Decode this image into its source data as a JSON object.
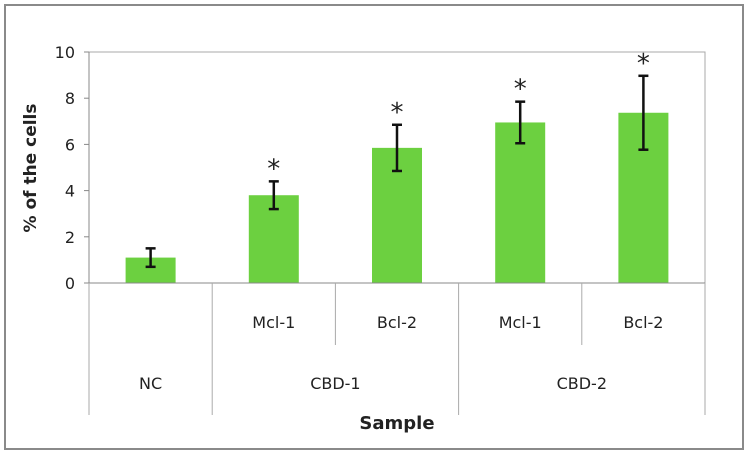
{
  "chart_data": {
    "type": "bar",
    "title": "",
    "xlabel": "Sample",
    "ylabel": "% of the cells",
    "ylim": [
      0,
      10
    ],
    "yticks": [
      "0",
      "2",
      "4",
      "6",
      "8",
      "10"
    ],
    "bars": [
      {
        "group": "NC",
        "label": "",
        "value": 1.1,
        "error": 0.4,
        "significant": false
      },
      {
        "group": "CBD-1",
        "label": "Mcl-1",
        "value": 3.8,
        "error": 0.6,
        "significant": true
      },
      {
        "group": "CBD-1",
        "label": "Bcl-2",
        "value": 5.85,
        "error": 1.0,
        "significant": true
      },
      {
        "group": "CBD-2",
        "label": "Mcl-1",
        "value": 6.95,
        "error": 0.9,
        "significant": true
      },
      {
        "group": "CBD-2",
        "label": "Bcl-2",
        "value": 7.37,
        "error": 1.6,
        "significant": true
      }
    ],
    "groups": [
      {
        "label": "NC",
        "span": 1
      },
      {
        "label": "CBD-1",
        "span": 2
      },
      {
        "label": "CBD-2",
        "span": 2
      }
    ],
    "significance_marker": "*",
    "bar_color": "#6cd040",
    "grid": false
  }
}
